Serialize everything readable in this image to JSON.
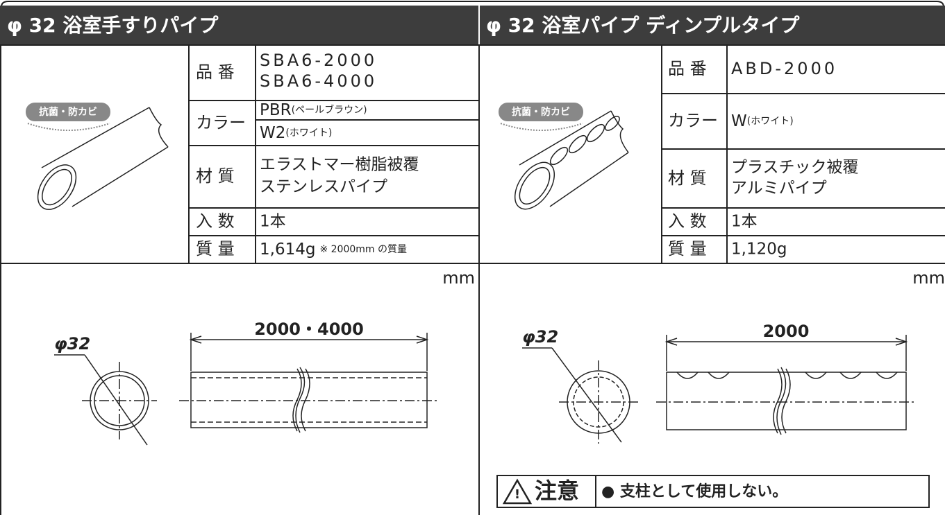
{
  "left": {
    "title": "φ 32 浴室手すりパイプ",
    "badge": "抗菌・防カビ",
    "specs": {
      "number": {
        "label": "品 番",
        "lines": [
          "SBA6-2000",
          "SBA6-4000"
        ]
      },
      "color": {
        "label": "カラー",
        "options": [
          {
            "code": "PBR",
            "note": "(ペールブラウン)"
          },
          {
            "code": "W2",
            "note": "(ホワイト)"
          }
        ]
      },
      "material": {
        "label": "材 質",
        "lines": [
          "エラストマー樹脂被覆",
          "ステンレスパイプ"
        ]
      },
      "quantity": {
        "label": "入 数",
        "value": "1本"
      },
      "mass": {
        "label": "質 量",
        "value": "1,614g",
        "note": "※ 2000mm の質量"
      }
    },
    "unit": "mm",
    "drawing": {
      "diameter": "φ32",
      "length": "2000・4000"
    }
  },
  "right": {
    "title": "φ 32 浴室パイプ ディンプルタイプ",
    "badge": "抗菌・防カビ",
    "specs": {
      "number": {
        "label": "品 番",
        "lines": [
          "ABD-2000"
        ]
      },
      "color": {
        "label": "カラー",
        "options": [
          {
            "code": "W",
            "note": "(ホワイト)"
          }
        ]
      },
      "material": {
        "label": "材 質",
        "lines": [
          "プラスチック被覆",
          "アルミパイプ"
        ]
      },
      "quantity": {
        "label": "入 数",
        "value": "1本"
      },
      "mass": {
        "label": "質 量",
        "value": "1,120g"
      }
    },
    "unit": "mm",
    "drawing": {
      "diameter": "φ32",
      "length": "2000"
    },
    "caution": {
      "label": "注意",
      "text": "● 支柱として使用しない。"
    }
  }
}
